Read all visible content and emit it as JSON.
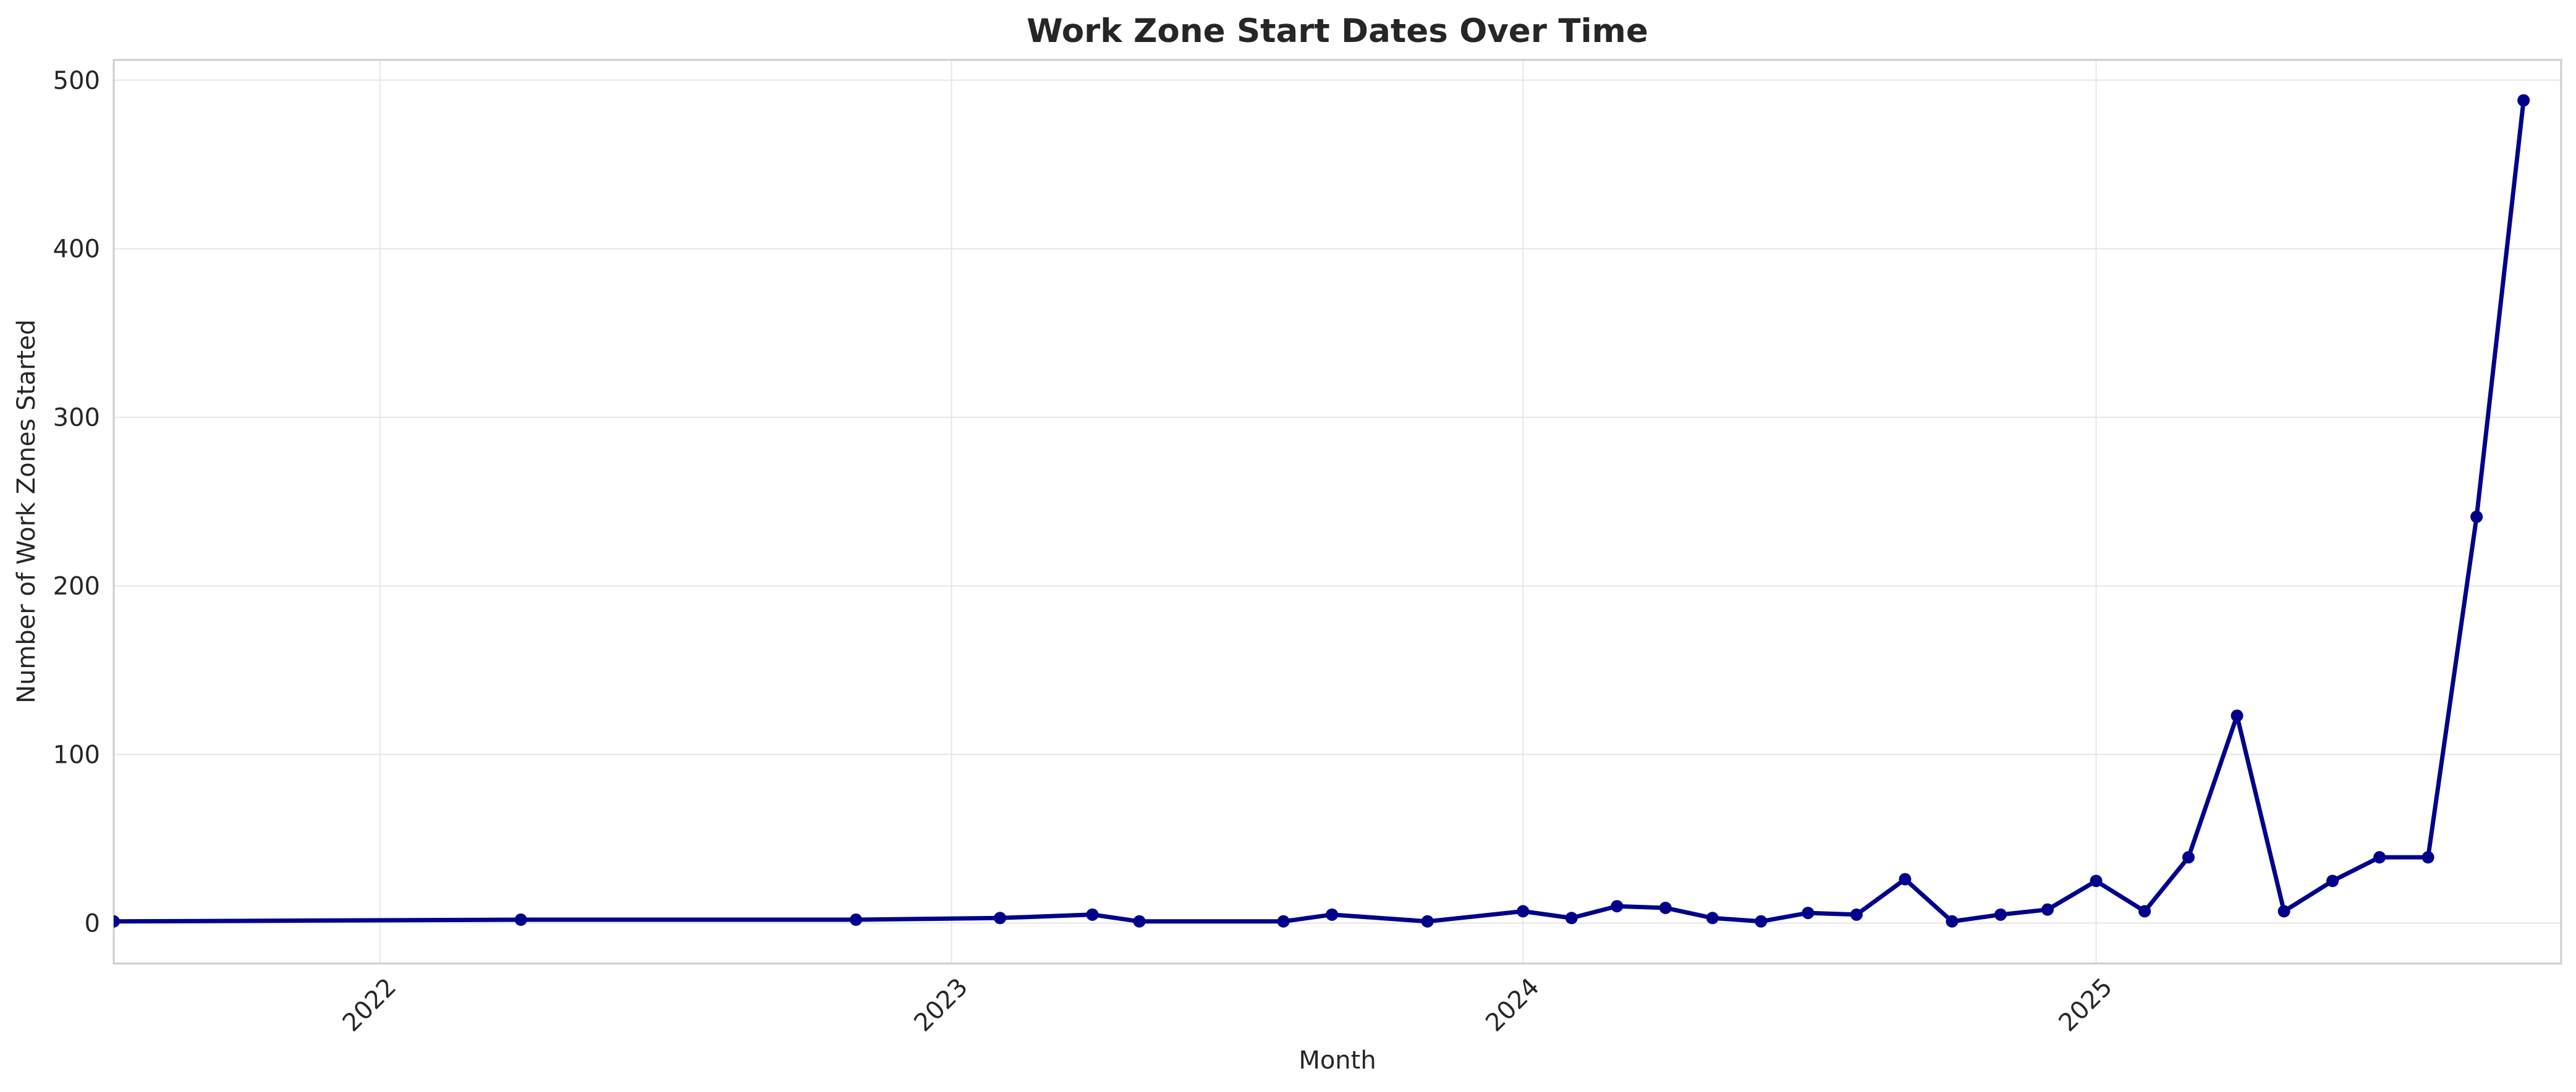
{
  "chart_data": {
    "type": "line",
    "title": "Work Zone Start Dates Over Time",
    "xlabel": "Month",
    "ylabel": "Number of Work Zones Started",
    "grid": true,
    "legend": "none",
    "color": "#00008b",
    "xlim": [
      "2021-07-15",
      "2025-10-25"
    ],
    "ylim": [
      -24,
      512
    ],
    "x_ticks": [
      {
        "date": "2022-01-01",
        "label": "2022"
      },
      {
        "date": "2023-01-01",
        "label": "2023"
      },
      {
        "date": "2024-01-01",
        "label": "2024"
      },
      {
        "date": "2025-01-01",
        "label": "2025"
      }
    ],
    "y_ticks": [
      0,
      100,
      200,
      300,
      400,
      500
    ],
    "series": [
      {
        "points": [
          {
            "x": "2021-07-15",
            "y": 1
          },
          {
            "x": "2022-04-01",
            "y": 2
          },
          {
            "x": "2022-11-01",
            "y": 2
          },
          {
            "x": "2023-02-01",
            "y": 3
          },
          {
            "x": "2023-04-01",
            "y": 5
          },
          {
            "x": "2023-05-01",
            "y": 1
          },
          {
            "x": "2023-08-01",
            "y": 1
          },
          {
            "x": "2023-09-01",
            "y": 5
          },
          {
            "x": "2023-11-01",
            "y": 1
          },
          {
            "x": "2024-01-01",
            "y": 7
          },
          {
            "x": "2024-02-01",
            "y": 3
          },
          {
            "x": "2024-03-01",
            "y": 10
          },
          {
            "x": "2024-04-01",
            "y": 9
          },
          {
            "x": "2024-05-01",
            "y": 3
          },
          {
            "x": "2024-06-01",
            "y": 1
          },
          {
            "x": "2024-07-01",
            "y": 6
          },
          {
            "x": "2024-08-01",
            "y": 5
          },
          {
            "x": "2024-09-01",
            "y": 26
          },
          {
            "x": "2024-10-01",
            "y": 1
          },
          {
            "x": "2024-11-01",
            "y": 5
          },
          {
            "x": "2024-12-01",
            "y": 8
          },
          {
            "x": "2025-01-01",
            "y": 25
          },
          {
            "x": "2025-02-01",
            "y": 7
          },
          {
            "x": "2025-03-01",
            "y": 39
          },
          {
            "x": "2025-04-01",
            "y": 123
          },
          {
            "x": "2025-05-01",
            "y": 7
          },
          {
            "x": "2025-06-01",
            "y": 25
          },
          {
            "x": "2025-07-01",
            "y": 39
          },
          {
            "x": "2025-08-01",
            "y": 39
          },
          {
            "x": "2025-09-01",
            "y": 241
          },
          {
            "x": "2025-10-01",
            "y": 488
          }
        ]
      }
    ]
  }
}
